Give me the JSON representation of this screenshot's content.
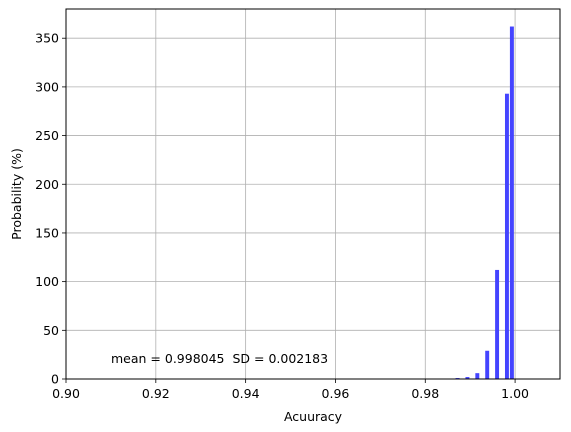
{
  "chart_data": {
    "type": "bar",
    "title": "",
    "xlabel": "Acuuracy",
    "ylabel": "Probability (%)",
    "xlim": [
      0.9,
      1.01
    ],
    "ylim": [
      0,
      380
    ],
    "xticks": [
      0.9,
      0.92,
      0.94,
      0.96,
      0.98,
      1.0
    ],
    "xtick_labels": [
      "0.90",
      "0.92",
      "0.94",
      "0.96",
      "0.98",
      "1.00"
    ],
    "yticks": [
      0,
      50,
      100,
      150,
      200,
      250,
      300,
      350
    ],
    "ytick_labels": [
      "0",
      "50",
      "100",
      "150",
      "200",
      "250",
      "300",
      "350"
    ],
    "grid": true,
    "bar_color": "#4040ff",
    "bin_width": 0.0011,
    "bins": [
      {
        "x": 0.9873,
        "value": 1
      },
      {
        "x": 0.9895,
        "value": 2
      },
      {
        "x": 0.9917,
        "value": 6
      },
      {
        "x": 0.9939,
        "value": 29
      },
      {
        "x": 0.9961,
        "value": 112
      },
      {
        "x": 0.9983,
        "value": 293
      },
      {
        "x": 0.9994,
        "value": 362
      }
    ],
    "annotation": "mean = 0.998045  SD = 0.002183"
  }
}
